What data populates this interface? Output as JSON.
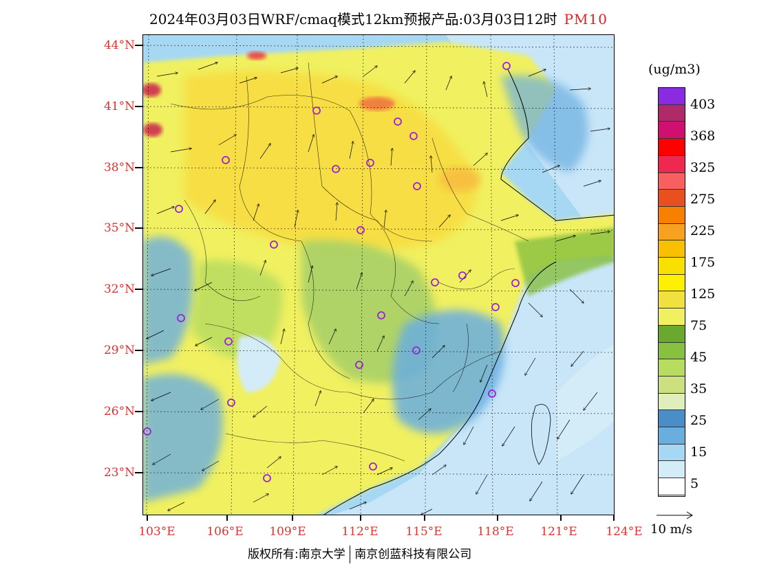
{
  "header": {
    "title": "2024年03月03日WRF/cmaq模式12km预报产品:03月03日12时",
    "species": "PM10"
  },
  "map": {
    "lat_labels": [
      "44°N",
      "41°N",
      "38°N",
      "35°N",
      "32°N",
      "29°N",
      "26°N",
      "23°N"
    ],
    "lon_labels": [
      "103°E",
      "106°E",
      "109°E",
      "112°E",
      "115°E",
      "118°E",
      "121°E",
      "124°E"
    ],
    "station_marker_color": "#9b20d8",
    "colors": {
      "land_yellow": "#f0f060",
      "land_gold": "#f8dc40",
      "land_green": "#a8d068",
      "sea_blue": "#6aaee0",
      "sea_light": "#c8e6f8",
      "hot_orange": "#f08040",
      "hot_red": "#d04050"
    }
  },
  "legend": {
    "units": "(ug/m3)",
    "labels": [
      "403",
      "368",
      "325",
      "275",
      "225",
      "175",
      "125",
      "75",
      "45",
      "35",
      "25",
      "15",
      "5"
    ],
    "colors": [
      "#8a2be2",
      "#b02a6a",
      "#d01070",
      "#ff0000",
      "#f02850",
      "#f86060",
      "#e85020",
      "#f88000",
      "#f8a020",
      "#f8c000",
      "#f8e000",
      "#fff000",
      "#f0e040",
      "#f0f060",
      "#6aa830",
      "#88c040",
      "#b8dc60",
      "#cce080",
      "#e0eebc",
      "#4a8ec8",
      "#6aaee0",
      "#a6d8f4",
      "#d4ecf8",
      "#ffffff"
    ]
  },
  "wind_legend": {
    "label": "10 m/s"
  },
  "footer": {
    "left": "版权所有:南京大学",
    "right": "南京创蓝科技有限公司"
  }
}
